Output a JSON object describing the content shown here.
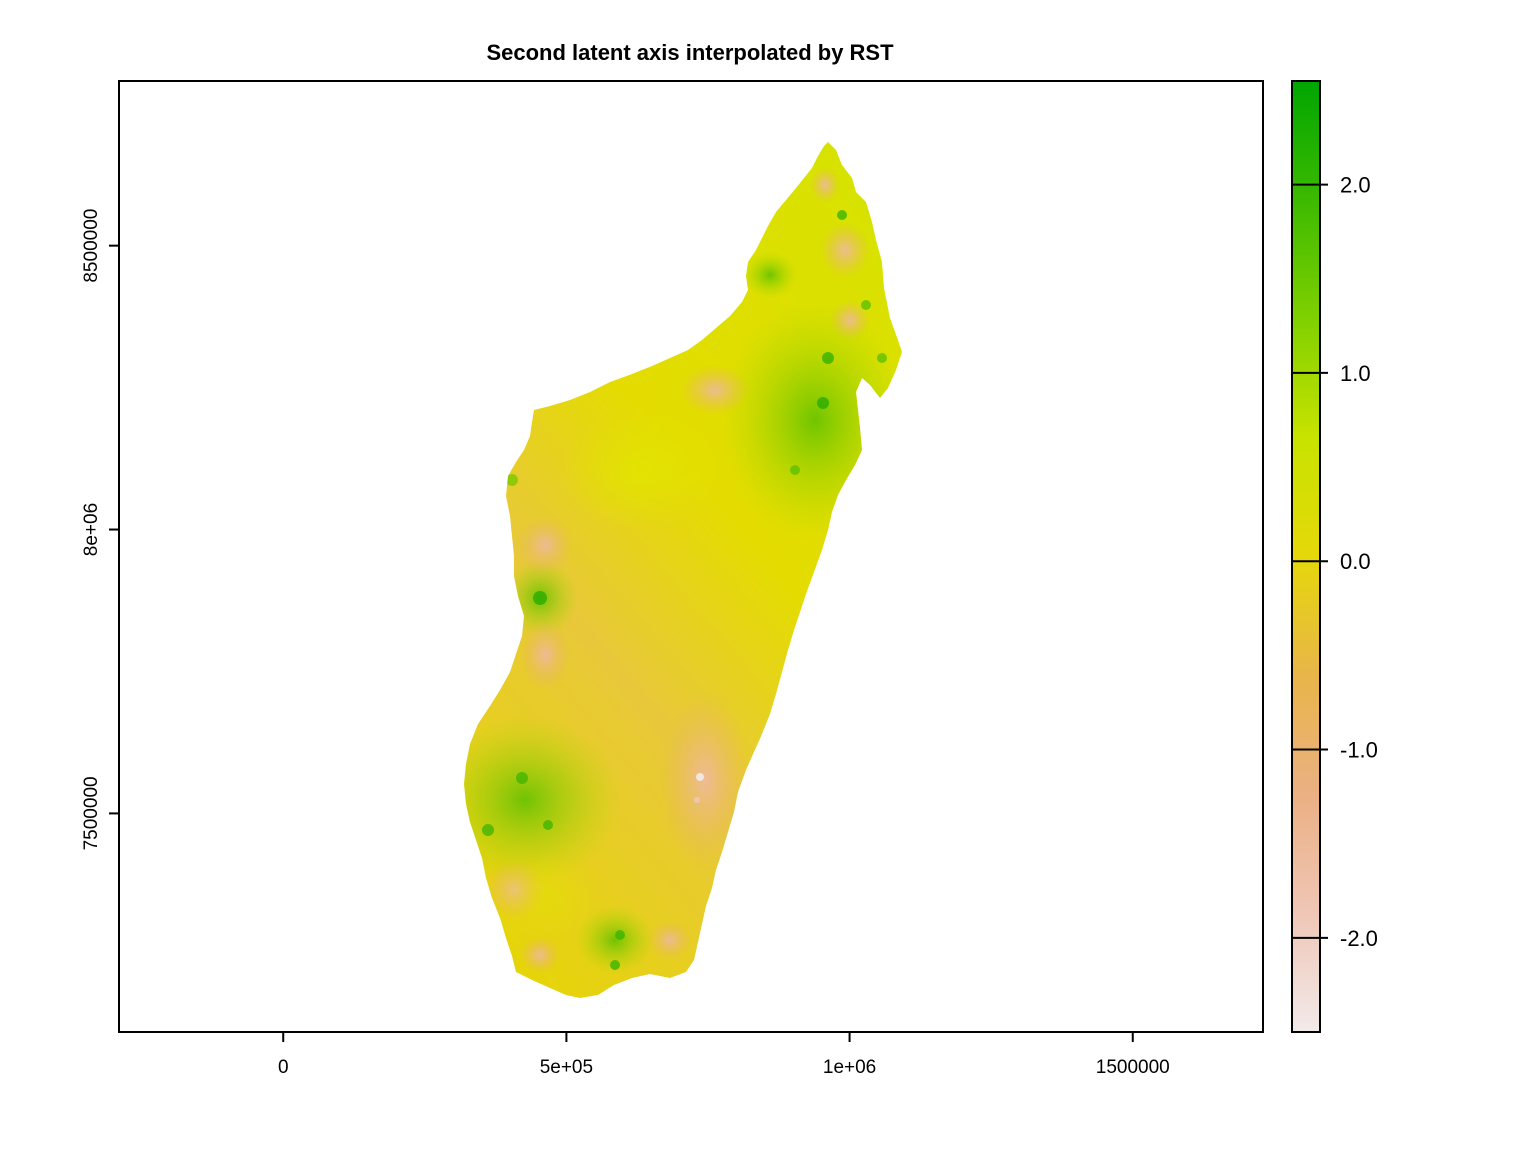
{
  "chart_data": {
    "type": "heatmap",
    "title": "Second latent axis interpolated by RST",
    "xlabel": "",
    "ylabel": "",
    "xlim": [
      -290000,
      1730000
    ],
    "ylim": [
      7115000,
      8790000
    ],
    "x_ticks": [
      {
        "value": 0,
        "label": "0"
      },
      {
        "value": 500000,
        "label": "5e+05"
      },
      {
        "value": 1000000,
        "label": "1e+06"
      },
      {
        "value": 1500000,
        "label": "1500000"
      }
    ],
    "y_ticks": [
      {
        "value": 7500000,
        "label": "7500000"
      },
      {
        "value": 8000000,
        "label": "8e+06"
      },
      {
        "value": 8500000,
        "label": "8500000"
      }
    ],
    "colorbar": {
      "range": [
        -2.5,
        2.55
      ],
      "ticks": [
        {
          "value": 2.0,
          "label": "2.0"
        },
        {
          "value": 1.0,
          "label": "1.0"
        },
        {
          "value": 0.0,
          "label": "0.0"
        },
        {
          "value": -1.0,
          "label": "-1.0"
        },
        {
          "value": -2.0,
          "label": "-2.0"
        }
      ],
      "colors": [
        "#f2eaea",
        "#efc6b6",
        "#ebb083",
        "#e8b549",
        "#e5d80a",
        "#c8e300",
        "#80d000",
        "#3cba00",
        "#00a600"
      ]
    },
    "grid": false,
    "legend": "right"
  }
}
